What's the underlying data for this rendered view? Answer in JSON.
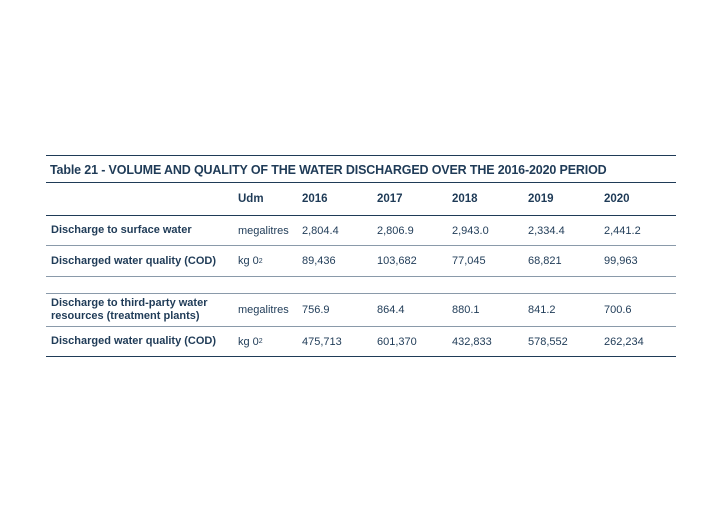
{
  "table": {
    "title": "Table 21 - VOLUME AND QUALITY OF THE WATER DISCHARGED OVER THE 2016-2020 PERIOD",
    "headers": {
      "label": "",
      "udm": "Udm",
      "years": [
        "2016",
        "2017",
        "2018",
        "2019",
        "2020"
      ]
    },
    "rows": [
      {
        "label": "Discharge to surface water",
        "udm": "megalitres",
        "udm_sub": "",
        "values": [
          "2,804.4",
          "2,806.9",
          "2,943.0",
          "2,334.4",
          "2,441.2"
        ]
      },
      {
        "label": "Discharged water quality (COD)",
        "udm": "kg 0",
        "udm_sub": "2",
        "values": [
          "89,436",
          "103,682",
          "77,045",
          "68,821",
          "99,963"
        ]
      },
      {
        "label": "Discharge to third-party water resources (treatment plants)",
        "udm": "megalitres",
        "udm_sub": "",
        "values": [
          "756.9",
          "864.4",
          "880.1",
          "841.2",
          "700.6"
        ]
      },
      {
        "label": "Discharged water quality (COD)",
        "udm": "kg 0",
        "udm_sub": "2",
        "values": [
          "475,713",
          "601,370",
          "432,833",
          "578,552",
          "262,234"
        ]
      }
    ]
  }
}
